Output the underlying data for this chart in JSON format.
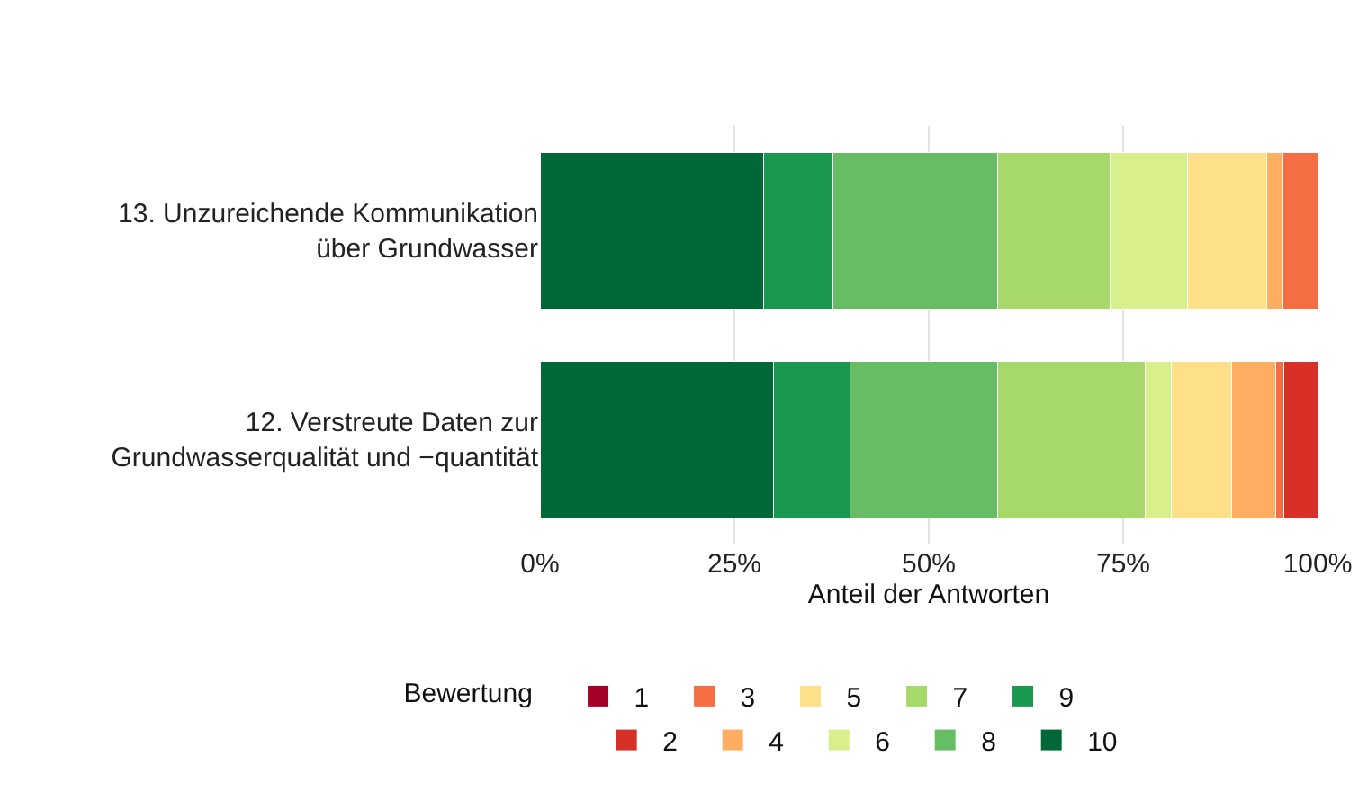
{
  "chart_data": {
    "type": "bar",
    "orientation": "horizontal",
    "stacked": true,
    "categories": [
      "13. Unzureichende Kommunikation\nüber Grundwasser",
      "12. Verstreute Daten zur\nGrundwasserqualität und −quantität"
    ],
    "series": [
      {
        "name": "10",
        "color": "#006837",
        "values": [
          28.8,
          30.0
        ]
      },
      {
        "name": "9",
        "color": "#1a9850",
        "values": [
          8.9,
          9.9
        ]
      },
      {
        "name": "8",
        "color": "#66bd63",
        "values": [
          21.1,
          18.9
        ]
      },
      {
        "name": "7",
        "color": "#a6d96a",
        "values": [
          14.5,
          19.0
        ]
      },
      {
        "name": "6",
        "color": "#d9ef8b",
        "values": [
          10.0,
          3.4
        ]
      },
      {
        "name": "5",
        "color": "#fee08b",
        "values": [
          10.2,
          7.8
        ]
      },
      {
        "name": "4",
        "color": "#fdae61",
        "values": [
          2.0,
          5.6
        ]
      },
      {
        "name": "3",
        "color": "#f46d43",
        "values": [
          4.5,
          1.1
        ]
      },
      {
        "name": "2",
        "color": "#d73027",
        "values": [
          null,
          4.3
        ]
      },
      {
        "name": "1",
        "color": "#a50026",
        "values": [
          null,
          null
        ]
      }
    ],
    "xlim": [
      0,
      100
    ],
    "xticks": [
      {
        "value": 0,
        "label": "0%"
      },
      {
        "value": 25,
        "label": "25%"
      },
      {
        "value": 50,
        "label": "50%"
      },
      {
        "value": 75,
        "label": "75%"
      },
      {
        "value": 100,
        "label": "100%"
      }
    ],
    "xlabel": "Anteil der Antworten",
    "legend_title": "Bewertung",
    "legend": "bottom",
    "grid": "x"
  }
}
